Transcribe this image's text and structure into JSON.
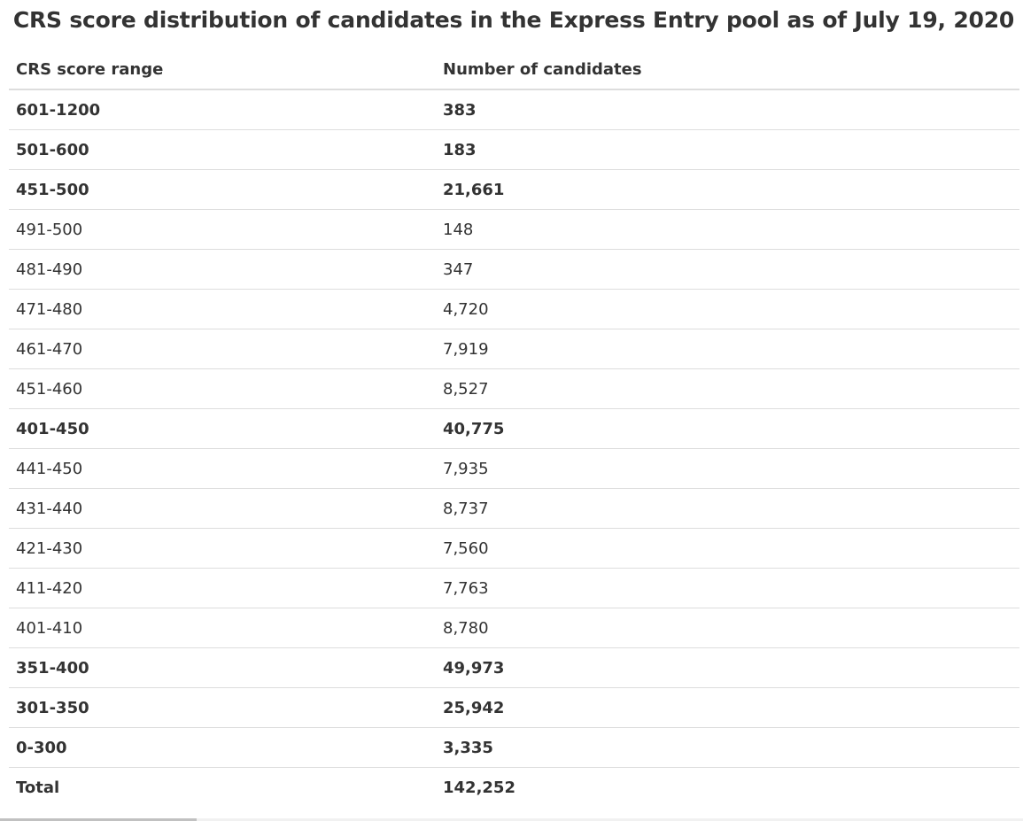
{
  "title": "CRS score distribution of candidates in the Express Entry pool as of July 19, 2020",
  "table": {
    "headers": [
      "CRS score range",
      "Number of candidates"
    ],
    "rows": [
      {
        "range": "601-1200",
        "count": "383",
        "bold": true
      },
      {
        "range": "501-600",
        "count": "183",
        "bold": true
      },
      {
        "range": "451-500",
        "count": "21,661",
        "bold": true
      },
      {
        "range": "491-500",
        "count": "148",
        "bold": false
      },
      {
        "range": "481-490",
        "count": "347",
        "bold": false
      },
      {
        "range": "471-480",
        "count": "4,720",
        "bold": false
      },
      {
        "range": "461-470",
        "count": "7,919",
        "bold": false
      },
      {
        "range": "451-460",
        "count": "8,527",
        "bold": false
      },
      {
        "range": "401-450",
        "count": "40,775",
        "bold": true
      },
      {
        "range": "441-450",
        "count": "7,935",
        "bold": false
      },
      {
        "range": "431-440",
        "count": "8,737",
        "bold": false
      },
      {
        "range": "421-430",
        "count": "7,560",
        "bold": false
      },
      {
        "range": "411-420",
        "count": "7,763",
        "bold": false
      },
      {
        "range": "401-410",
        "count": "8,780",
        "bold": false
      },
      {
        "range": "351-400",
        "count": "49,973",
        "bold": true
      },
      {
        "range": "301-350",
        "count": "25,942",
        "bold": true
      },
      {
        "range": "0-300",
        "count": "3,335",
        "bold": true
      },
      {
        "range": "Total",
        "count": "142,252",
        "bold": true
      }
    ]
  }
}
